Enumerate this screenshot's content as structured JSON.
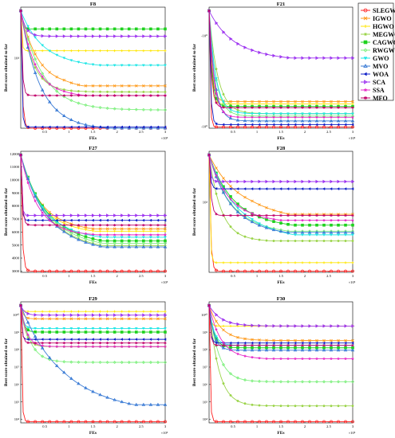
{
  "legend": {
    "placement": "right",
    "entries": [
      {
        "name": "SLEGWO",
        "color": "#ff2020",
        "marker": "circle"
      },
      {
        "name": "IGWO",
        "color": "#ff9a1a",
        "marker": "x"
      },
      {
        "name": "HGWO",
        "color": "#ffe600",
        "marker": "plus"
      },
      {
        "name": "MEGWO",
        "color": "#9bd44a",
        "marker": "star"
      },
      {
        "name": "CAGWO",
        "color": "#1ed21e",
        "marker": "square"
      },
      {
        "name": "RWGWO",
        "color": "#7ff07f",
        "marker": "diamond"
      },
      {
        "name": "GWO",
        "color": "#1ee6e6",
        "marker": "triangle-down"
      },
      {
        "name": "MVO",
        "color": "#3a7bd5",
        "marker": "triangle-up"
      },
      {
        "name": "WOA",
        "color": "#1020c8",
        "marker": "triangle-left"
      },
      {
        "name": "SCA",
        "color": "#9b2ff0",
        "marker": "triangle-right"
      },
      {
        "name": "SSA",
        "color": "#e628c8",
        "marker": "pentagram"
      },
      {
        "name": "MFO",
        "color": "#c0006a",
        "marker": "hexagram"
      }
    ]
  },
  "chart_data": [
    {
      "type": "line",
      "title": "F8",
      "xlabel": "FEs",
      "ylabel": "Best score obtained so far",
      "x_tick_labels": [
        "0.5",
        "1",
        "1.5",
        "2",
        "2.5",
        "3"
      ],
      "x_exponent_label": "×10⁵",
      "y_tick_labels": [
        "10⁴"
      ],
      "grid": false,
      "series": [
        {
          "name": "SLEGWO",
          "start": 0.97,
          "end": 0.0,
          "shape": 0.03,
          "extra": 0
        },
        {
          "name": "IGWO",
          "start": 0.97,
          "end": 0.35,
          "shape": 0.35,
          "extra": 0.2
        },
        {
          "name": "HGWO",
          "start": 0.97,
          "end": 0.64,
          "shape": 0.02,
          "extra": 0
        },
        {
          "name": "MEGWO",
          "start": 0.97,
          "end": 0.3,
          "shape": 0.25,
          "extra": 0
        },
        {
          "name": "CAGWO",
          "start": 0.97,
          "end": 0.82,
          "shape": 0.03,
          "extra": 0
        },
        {
          "name": "RWGWO",
          "start": 0.97,
          "end": 0.15,
          "shape": 0.45,
          "extra": 0
        },
        {
          "name": "GWO",
          "start": 0.97,
          "end": 0.52,
          "shape": 0.45,
          "extra": 0.08
        },
        {
          "name": "MVO",
          "start": 0.97,
          "end": 0.0,
          "shape": 0.4,
          "extra": 0.05
        },
        {
          "name": "WOA",
          "start": 0.97,
          "end": 0.01,
          "shape": 0.02,
          "extra": 0
        },
        {
          "name": "SCA",
          "start": 0.97,
          "end": 0.76,
          "shape": 0.1,
          "extra": 0
        },
        {
          "name": "SSA",
          "start": 0.97,
          "end": 0.27,
          "shape": 0.3,
          "extra": 0.08
        },
        {
          "name": "MFO",
          "start": 0.97,
          "end": 0.27,
          "shape": 0.03,
          "extra": 0
        }
      ]
    },
    {
      "type": "line",
      "title": "F21",
      "xlabel": "FEs",
      "ylabel": "Best score obtained so far",
      "x_tick_labels": [
        "0.5",
        "1",
        "1.5",
        "2",
        "2.5",
        "3"
      ],
      "x_exponent_label": "×10⁵",
      "y_tick_labels": [
        "-10⁰",
        "-10⁰"
      ],
      "grid": false,
      "series": [
        {
          "name": "SLEGWO",
          "start": 0.97,
          "end": 0.01,
          "shape": 0.02,
          "extra": 0
        },
        {
          "name": "IGWO",
          "start": 0.97,
          "end": 0.22,
          "shape": 0.06,
          "extra": 0
        },
        {
          "name": "HGWO",
          "start": 0.97,
          "end": 0.2,
          "shape": 0.04,
          "extra": 0
        },
        {
          "name": "MEGWO",
          "start": 0.97,
          "end": 0.12,
          "shape": 0.18,
          "extra": 0
        },
        {
          "name": "CAGWO",
          "start": 0.97,
          "end": 0.18,
          "shape": 0.06,
          "extra": 0
        },
        {
          "name": "RWGWO",
          "start": 0.97,
          "end": 0.1,
          "shape": 0.14,
          "extra": 0
        },
        {
          "name": "GWO",
          "start": 0.97,
          "end": 0.12,
          "shape": 0.14,
          "extra": 0
        },
        {
          "name": "MVO",
          "start": 0.97,
          "end": 0.06,
          "shape": 0.12,
          "extra": 0
        },
        {
          "name": "WOA",
          "start": 0.97,
          "end": 0.03,
          "shape": 0.03,
          "extra": 0
        },
        {
          "name": "SCA",
          "start": 0.97,
          "end": 0.58,
          "shape": 0.5,
          "extra": 0.08
        },
        {
          "name": "SSA",
          "start": 0.97,
          "end": 0.09,
          "shape": 0.1,
          "extra": 0
        },
        {
          "name": "MFO",
          "start": 0.97,
          "end": 0.17,
          "shape": 0.05,
          "extra": 0
        }
      ]
    },
    {
      "type": "line",
      "title": "F27",
      "xlabel": "FEs",
      "ylabel": "Best score obtained so far",
      "x_tick_labels": [
        "0.5",
        "1",
        "1.5",
        "2",
        "2.5",
        "3"
      ],
      "x_exponent_label": "×10⁵",
      "y_tick_labels": [
        "3000",
        "4000",
        "5000",
        "6000",
        "7000",
        "8000",
        "9000",
        "10000",
        "11000",
        "12000"
      ],
      "y_range": [
        2900,
        12200
      ],
      "grid": false,
      "series": [
        {
          "name": "SLEGWO",
          "start": 0.97,
          "end": 0.01,
          "shape": 0.03,
          "extra": 0
        },
        {
          "name": "IGWO",
          "start": 0.97,
          "end": 0.36,
          "shape": 0.4,
          "extra": 0.12
        },
        {
          "name": "HGWO",
          "start": 0.97,
          "end": 0.34,
          "shape": 0.4,
          "extra": 0.1
        },
        {
          "name": "MEGWO",
          "start": 0.97,
          "end": 0.22,
          "shape": 0.5,
          "extra": 0.15
        },
        {
          "name": "CAGWO",
          "start": 0.97,
          "end": 0.26,
          "shape": 0.5,
          "extra": 0.15
        },
        {
          "name": "RWGWO",
          "start": 0.97,
          "end": 0.24,
          "shape": 0.5,
          "extra": 0.15
        },
        {
          "name": "GWO",
          "start": 0.97,
          "end": 0.29,
          "shape": 0.45,
          "extra": 0.1
        },
        {
          "name": "MVO",
          "start": 0.97,
          "end": 0.21,
          "shape": 0.5,
          "extra": 0.15
        },
        {
          "name": "WOA",
          "start": 0.97,
          "end": 0.43,
          "shape": 0.02,
          "extra": 0.03
        },
        {
          "name": "SCA",
          "start": 0.97,
          "end": 0.47,
          "shape": 0.02,
          "extra": 0.02
        },
        {
          "name": "SSA",
          "start": 0.97,
          "end": 0.31,
          "shape": 0.35,
          "extra": 0.05
        },
        {
          "name": "MFO",
          "start": 0.97,
          "end": 0.39,
          "shape": 0.03,
          "extra": 0
        }
      ]
    },
    {
      "type": "line",
      "title": "F28",
      "xlabel": "FEs",
      "ylabel": "Best score obtained so far",
      "x_tick_labels": [
        "0.5",
        "1",
        "1.5",
        "2",
        "2.5",
        "3"
      ],
      "x_exponent_label": "×10⁵",
      "y_tick_labels": [
        "10⁴"
      ],
      "grid": false,
      "series": [
        {
          "name": "SLEGWO",
          "start": 0.97,
          "end": 0.01,
          "shape": 0.03,
          "extra": 0
        },
        {
          "name": "IGWO",
          "start": 0.97,
          "end": 0.48,
          "shape": 0.6,
          "extra": 0.2
        },
        {
          "name": "HGWO",
          "start": 0.97,
          "end": 0.08,
          "shape": 0.02,
          "extra": 0
        },
        {
          "name": "MEGWO",
          "start": 0.97,
          "end": 0.26,
          "shape": 0.25,
          "extra": 0.05
        },
        {
          "name": "CAGWO",
          "start": 0.97,
          "end": 0.39,
          "shape": 0.5,
          "extra": 0.1
        },
        {
          "name": "RWGWO",
          "start": 0.97,
          "end": 0.34,
          "shape": 0.45,
          "extra": 0.1
        },
        {
          "name": "GWO",
          "start": 0.97,
          "end": 0.31,
          "shape": 0.55,
          "extra": 0.15
        },
        {
          "name": "MVO",
          "start": 0.97,
          "end": 0.33,
          "shape": 0.45,
          "extra": 0.12
        },
        {
          "name": "WOA",
          "start": 0.97,
          "end": 0.69,
          "shape": 0.03,
          "extra": 0
        },
        {
          "name": "SCA",
          "start": 0.97,
          "end": 0.75,
          "shape": 0.03,
          "extra": 0
        },
        {
          "name": "SSA",
          "start": 0.97,
          "end": 0.43,
          "shape": 0.4,
          "extra": 0.1
        },
        {
          "name": "MFO",
          "start": 0.97,
          "end": 0.47,
          "shape": 0.04,
          "extra": 0
        }
      ]
    },
    {
      "type": "line",
      "title": "F29",
      "xlabel": "FEs",
      "ylabel": "Best score obtained so far",
      "x_tick_labels": [
        "0.5",
        "1",
        "1.5",
        "2",
        "2.5",
        "3"
      ],
      "x_exponent_label": "×10⁵",
      "y_tick_labels": [
        "10⁴",
        "10⁵",
        "10⁶",
        "10⁷",
        "10⁸",
        "10⁹",
        "10¹⁰"
      ],
      "y_log": true,
      "grid": false,
      "series": [
        {
          "name": "SLEGWO",
          "start": 0.97,
          "end": 0.01,
          "shape": 0.02,
          "extra": 0
        },
        {
          "name": "IGWO",
          "start": 0.97,
          "end": 0.86,
          "shape": 0.05,
          "extra": 0
        },
        {
          "name": "HGWO",
          "start": 0.97,
          "end": 0.92,
          "shape": 0.03,
          "extra": 0
        },
        {
          "name": "MEGWO",
          "start": 0.97,
          "end": 0.63,
          "shape": 0.1,
          "extra": 0
        },
        {
          "name": "CAGWO",
          "start": 0.97,
          "end": 0.75,
          "shape": 0.06,
          "extra": 0
        },
        {
          "name": "RWGWO",
          "start": 0.97,
          "end": 0.5,
          "shape": 0.2,
          "extra": 0
        },
        {
          "name": "GWO",
          "start": 0.97,
          "end": 0.78,
          "shape": 0.05,
          "extra": 0
        },
        {
          "name": "MVO",
          "start": 0.97,
          "end": 0.15,
          "shape": 0.8,
          "extra": 0.15
        },
        {
          "name": "WOA",
          "start": 0.97,
          "end": 0.69,
          "shape": 0.02,
          "extra": 0
        },
        {
          "name": "SCA",
          "start": 0.97,
          "end": 0.89,
          "shape": 0.08,
          "extra": 0
        },
        {
          "name": "SSA",
          "start": 0.97,
          "end": 0.63,
          "shape": 0.12,
          "extra": 0
        },
        {
          "name": "MFO",
          "start": 0.97,
          "end": 0.66,
          "shape": 0.03,
          "extra": 0
        }
      ]
    },
    {
      "type": "line",
      "title": "F30",
      "xlabel": "FEs",
      "ylabel": "Best score obtained so far",
      "x_tick_labels": [
        "0.5",
        "1",
        "1.5",
        "2",
        "2.5",
        "3"
      ],
      "x_exponent_label": "×10⁵",
      "y_tick_labels": [
        "10⁴",
        "10⁵",
        "10⁶",
        "10⁷",
        "10⁸",
        "10⁹",
        "10¹⁰"
      ],
      "y_log": true,
      "grid": false,
      "series": [
        {
          "name": "SLEGWO",
          "start": 0.97,
          "end": 0.01,
          "shape": 0.02,
          "extra": 0
        },
        {
          "name": "IGWO",
          "start": 0.97,
          "end": 0.68,
          "shape": 0.25,
          "extra": 0
        },
        {
          "name": "HGWO",
          "start": 0.97,
          "end": 0.8,
          "shape": 0.03,
          "extra": 0
        },
        {
          "name": "MEGWO",
          "start": 0.97,
          "end": 0.14,
          "shape": 0.2,
          "extra": 0
        },
        {
          "name": "CAGWO",
          "start": 0.97,
          "end": 0.62,
          "shape": 0.1,
          "extra": 0
        },
        {
          "name": "RWGWO",
          "start": 0.97,
          "end": 0.34,
          "shape": 0.2,
          "extra": 0
        },
        {
          "name": "GWO",
          "start": 0.97,
          "end": 0.64,
          "shape": 0.1,
          "extra": 0
        },
        {
          "name": "MVO",
          "start": 0.97,
          "end": 0.6,
          "shape": 0.1,
          "extra": 0
        },
        {
          "name": "WOA",
          "start": 0.97,
          "end": 0.66,
          "shape": 0.03,
          "extra": 0
        },
        {
          "name": "SCA",
          "start": 0.97,
          "end": 0.8,
          "shape": 0.25,
          "extra": 0
        },
        {
          "name": "SSA",
          "start": 0.97,
          "end": 0.53,
          "shape": 0.25,
          "extra": 0.05
        },
        {
          "name": "MFO",
          "start": 0.97,
          "end": 0.64,
          "shape": 0.03,
          "extra": 0
        }
      ]
    }
  ]
}
